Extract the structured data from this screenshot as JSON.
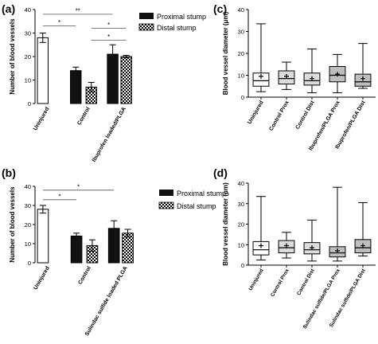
{
  "panels": {
    "a": "(a)",
    "b": "(b)",
    "c": "(c)",
    "d": "(d)"
  },
  "legend": {
    "proximal": "Proximal stump",
    "distal": "Distal stump"
  },
  "chart_data": [
    {
      "panel": "(a)",
      "type": "bar",
      "ylabel": "Number of blood vessels",
      "ylim": [
        0,
        40
      ],
      "yticks": [
        0,
        10,
        20,
        30,
        40
      ],
      "groups": [
        {
          "label": "Uninjured",
          "bars": [
            {
              "series": "Uninjured",
              "value": 28,
              "err": 2
            }
          ]
        },
        {
          "label": "Control",
          "bars": [
            {
              "series": "Proximal stump",
              "value": 14,
              "err": 1.5
            },
            {
              "series": "Distal stump",
              "value": 7,
              "err": 2
            }
          ]
        },
        {
          "label": "Ibuprofen loaded/PLGA",
          "bars": [
            {
              "series": "Proximal stump",
              "value": 21,
              "err": 4
            },
            {
              "series": "Distal stump",
              "value": 20,
              "err": 0.5
            }
          ]
        }
      ],
      "annotations": [
        {
          "from": 0,
          "to": 1,
          "y": 33,
          "text": "*"
        },
        {
          "from": 0,
          "to": 3,
          "y": 38,
          "text": "**"
        },
        {
          "from": 2,
          "to": 4,
          "y": 32,
          "text": "*"
        },
        {
          "from": 2,
          "to": 4,
          "y": 27,
          "text": "*"
        }
      ]
    },
    {
      "panel": "(b)",
      "type": "bar",
      "ylabel": "Number of blood vessels",
      "ylim": [
        0,
        40
      ],
      "yticks": [
        0,
        10,
        20,
        30,
        40
      ],
      "groups": [
        {
          "label": "Uninjured",
          "bars": [
            {
              "series": "Uninjured",
              "value": 28,
              "err": 2
            }
          ]
        },
        {
          "label": "Control",
          "bars": [
            {
              "series": "Proximal stump",
              "value": 14,
              "err": 1.5
            },
            {
              "series": "Distal stump",
              "value": 9,
              "err": 3
            }
          ]
        },
        {
          "label": "Sulindac sulfide loaded PLGA",
          "bars": [
            {
              "series": "Proximal stump",
              "value": 18,
              "err": 4
            },
            {
              "series": "Distal stump",
              "value": 15.5,
              "err": 2
            }
          ]
        }
      ],
      "annotations": [
        {
          "from": 0,
          "to": 1,
          "y": 33,
          "text": "*"
        },
        {
          "from": 0,
          "to": 3,
          "y": 38,
          "text": "*"
        }
      ]
    },
    {
      "panel": "(c)",
      "type": "box",
      "ylabel": "Blood vessel diameter (μm)",
      "ylim": [
        0,
        40
      ],
      "yticks": [
        0,
        10,
        20,
        30,
        40
      ],
      "boxes": [
        {
          "label": "Uninjured",
          "min": 2.5,
          "q1": 5,
          "median": 7.5,
          "q3": 11,
          "max": 33.5,
          "mean": 9.5,
          "fill": "#ffffff"
        },
        {
          "label": "Control Prox",
          "min": 3.5,
          "q1": 6,
          "median": 8.5,
          "q3": 12,
          "max": 16,
          "mean": 9.5,
          "fill": "#dcdcdc"
        },
        {
          "label": "Control  Dist",
          "min": 2,
          "q1": 5.5,
          "median": 7.5,
          "q3": 11,
          "max": 22,
          "mean": 8.5,
          "fill": "#dcdcdc"
        },
        {
          "label": "Ibuprofen/PLGA  Prox",
          "min": 2,
          "q1": 7,
          "median": 10,
          "q3": 14,
          "max": 19.5,
          "mean": 10.5,
          "fill": "#bebebe"
        },
        {
          "label": "Ibuprofen/PLGA Dist",
          "min": 4,
          "q1": 5,
          "median": 7,
          "q3": 10.5,
          "max": 24.5,
          "mean": 8.5,
          "fill": "#bebebe"
        }
      ]
    },
    {
      "panel": "(d)",
      "type": "box",
      "ylabel": "Blood vessel diameter (μm)",
      "ylim": [
        0,
        40
      ],
      "yticks": [
        0,
        10,
        20,
        30,
        40
      ],
      "boxes": [
        {
          "label": "Uninjured",
          "min": 2.5,
          "q1": 5,
          "median": 7.5,
          "q3": 11.5,
          "max": 33.5,
          "mean": 9.5,
          "fill": "#ffffff"
        },
        {
          "label": "Control Prox",
          "min": 3.5,
          "q1": 6,
          "median": 8.5,
          "q3": 12,
          "max": 16,
          "mean": 9.5,
          "fill": "#dcdcdc"
        },
        {
          "label": "Control  Dist",
          "min": 2,
          "q1": 5.5,
          "median": 7.5,
          "q3": 11,
          "max": 22,
          "mean": 8.5,
          "fill": "#dcdcdc"
        },
        {
          "label": "Sulindac sulfide/PLGA  Prox",
          "min": 2,
          "q1": 4,
          "median": 6,
          "q3": 9,
          "max": 38,
          "mean": 7,
          "fill": "#bebebe"
        },
        {
          "label": "Sulindac sulfide/PLGA Dist",
          "min": 4.5,
          "q1": 6,
          "median": 8.5,
          "q3": 12.5,
          "max": 30.5,
          "mean": 9.5,
          "fill": "#bebebe"
        }
      ]
    }
  ]
}
